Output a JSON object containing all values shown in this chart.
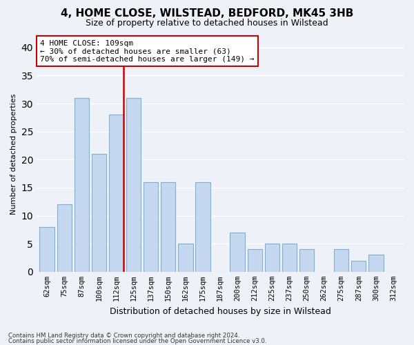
{
  "title": "4, HOME CLOSE, WILSTEAD, BEDFORD, MK45 3HB",
  "subtitle": "Size of property relative to detached houses in Wilstead",
  "xlabel": "Distribution of detached houses by size in Wilstead",
  "ylabel": "Number of detached properties",
  "categories": [
    "62sqm",
    "75sqm",
    "87sqm",
    "100sqm",
    "112sqm",
    "125sqm",
    "137sqm",
    "150sqm",
    "162sqm",
    "175sqm",
    "187sqm",
    "200sqm",
    "212sqm",
    "225sqm",
    "237sqm",
    "250sqm",
    "262sqm",
    "275sqm",
    "287sqm",
    "300sqm",
    "312sqm"
  ],
  "values": [
    8,
    12,
    31,
    21,
    28,
    31,
    16,
    16,
    5,
    16,
    0,
    7,
    4,
    5,
    5,
    4,
    0,
    4,
    2,
    3,
    0
  ],
  "bar_color": "#c5d8f0",
  "bar_edgecolor": "#7bafd4",
  "ref_line_index": 4,
  "ref_line_color": "#cc0000",
  "annotation_line1": "4 HOME CLOSE: 109sqm",
  "annotation_line2": "← 30% of detached houses are smaller (63)",
  "annotation_line3": "70% of semi-detached houses are larger (149) →",
  "annotation_box_color": "#ffffff",
  "annotation_box_edgecolor": "#cc0000",
  "footer1": "Contains HM Land Registry data © Crown copyright and database right 2024.",
  "footer2": "Contains public sector information licensed under the Open Government Licence v3.0.",
  "ylim": [
    0,
    42
  ],
  "background_color": "#eef2f8"
}
